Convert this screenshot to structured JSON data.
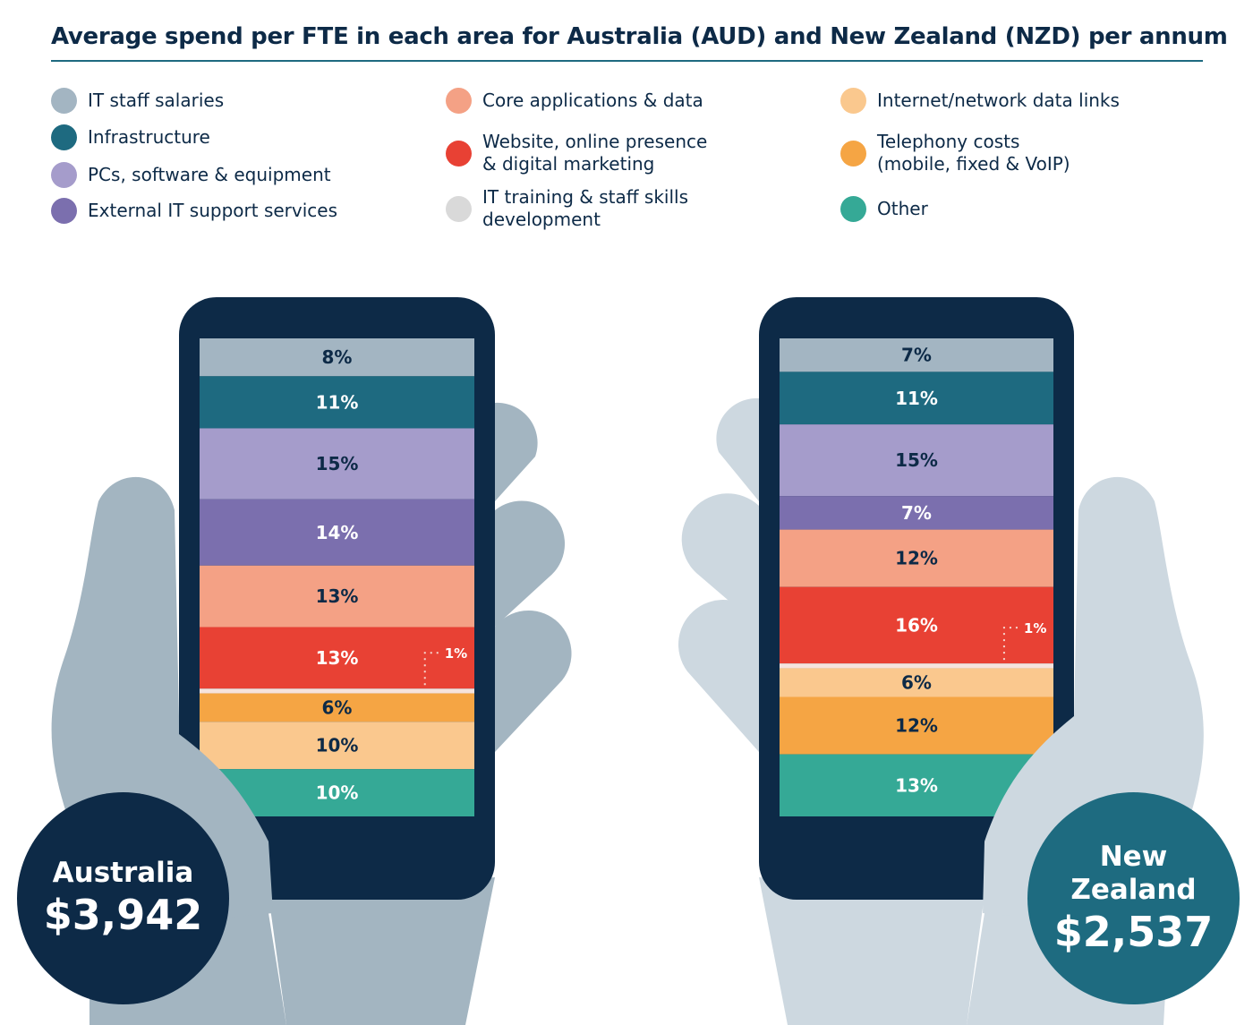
{
  "chart_data": {
    "type": "bar",
    "subtype": "100% stacked",
    "title": "Average spend per FTE in each area for Australia (AUD) and New Zealand (NZD) per annum",
    "legend": [
      {
        "key": "it_staff",
        "label": "IT staff salaries",
        "color": "#a3b5c2"
      },
      {
        "key": "infra",
        "label": "Infrastructure",
        "color": "#1e6a80"
      },
      {
        "key": "pcs",
        "label": "PCs, software & equipment",
        "color": "#a59ccb"
      },
      {
        "key": "external",
        "label": "External IT support services",
        "color": "#7b6fae"
      },
      {
        "key": "core",
        "label": "Core applications & data",
        "color": "#f4a185"
      },
      {
        "key": "website",
        "label": "Website, online presence & digital marketing",
        "color": "#e84134"
      },
      {
        "key": "training",
        "label": "IT training & staff skills development",
        "color": "#d9d9d9"
      },
      {
        "key": "internet",
        "label": "Internet/network data links",
        "color": "#fac88e"
      },
      {
        "key": "telephony",
        "label": "Telephony costs (mobile, fixed & VoIP)",
        "color": "#f5a544"
      },
      {
        "key": "other",
        "label": "Other",
        "color": "#35a996"
      }
    ],
    "series": [
      {
        "name": "Australia",
        "total": "$3,942",
        "segments": [
          {
            "key": "it_staff",
            "value": 8,
            "label": "8%"
          },
          {
            "key": "infra",
            "value": 11,
            "label": "11%"
          },
          {
            "key": "pcs",
            "value": 15,
            "label": "15%"
          },
          {
            "key": "external",
            "value": 14,
            "label": "14%"
          },
          {
            "key": "core",
            "value": 13,
            "label": "13%"
          },
          {
            "key": "website",
            "value": 13,
            "label": "13%"
          },
          {
            "key": "training",
            "value": 1,
            "label": "1%"
          },
          {
            "key": "telephony",
            "value": 6,
            "label": "6%"
          },
          {
            "key": "internet",
            "value": 10,
            "label": "10%"
          },
          {
            "key": "other",
            "value": 10,
            "label": "10%"
          }
        ]
      },
      {
        "name": "New Zealand",
        "total": "$2,537",
        "segments": [
          {
            "key": "it_staff",
            "value": 7,
            "label": "7%"
          },
          {
            "key": "infra",
            "value": 11,
            "label": "11%"
          },
          {
            "key": "pcs",
            "value": 15,
            "label": "15%"
          },
          {
            "key": "external",
            "value": 7,
            "label": "7%"
          },
          {
            "key": "core",
            "value": 12,
            "label": "12%"
          },
          {
            "key": "website",
            "value": 16,
            "label": "16%"
          },
          {
            "key": "training",
            "value": 1,
            "label": "1%"
          },
          {
            "key": "internet",
            "value": 6,
            "label": "6%"
          },
          {
            "key": "telephony",
            "value": 12,
            "label": "12%"
          },
          {
            "key": "other",
            "value": 13,
            "label": "13%"
          }
        ]
      }
    ]
  },
  "badges": {
    "au_name": "Australia",
    "au_value": "$3,942",
    "nz_name1": "New",
    "nz_name2": "Zealand",
    "nz_value": "$2,537"
  }
}
